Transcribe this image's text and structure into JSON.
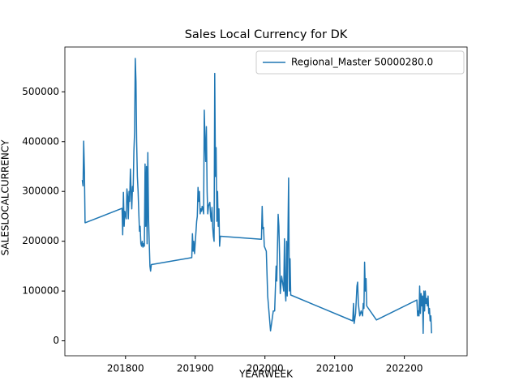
{
  "chart_data": {
    "type": "line",
    "title": "Sales Local Currency for DK",
    "x_label": "YEARWEEK",
    "y_label": "SALESLOCALCURRENCY",
    "x": [
      201738,
      201739,
      201740,
      201741,
      201742,
      201795,
      201796,
      201797,
      201798,
      201799,
      201801,
      201802,
      201803,
      201804,
      201805,
      201806,
      201807,
      201808,
      201809,
      201810,
      201811,
      201812,
      201813,
      201814,
      201815,
      201816,
      201817,
      201818,
      201819,
      201820,
      201821,
      201822,
      201823,
      201824,
      201825,
      201826,
      201827,
      201828,
      201829,
      201830,
      201831,
      201832,
      201833,
      201834,
      201835,
      201836,
      201837,
      201895,
      201896,
      201897,
      201898,
      201899,
      201902,
      201903,
      201904,
      201905,
      201906,
      201907,
      201908,
      201909,
      201910,
      201911,
      201912,
      201913,
      201914,
      201915,
      201916,
      201917,
      201918,
      201919,
      201920,
      201921,
      201922,
      201923,
      201924,
      201925,
      201926,
      201927,
      201928,
      201929,
      201930,
      201931,
      201932,
      201933,
      201934,
      201935,
      201936,
      201995,
      201996,
      201997,
      201998,
      201999,
      202002,
      202004,
      202008,
      202012,
      202014,
      202016,
      202017,
      202019,
      202020,
      202021,
      202022,
      202024,
      202026,
      202027,
      202028,
      202029,
      202030,
      202031,
      202032,
      202034,
      202035,
      202036,
      202037,
      202126,
      202127,
      202128,
      202130,
      202132,
      202133,
      202134,
      202136,
      202138,
      202140,
      202141,
      202142,
      202143,
      202144,
      202145,
      202146,
      202160,
      202218,
      202219,
      202220,
      202221,
      202222,
      202223,
      202224,
      202225,
      202226,
      202227,
      202228,
      202229,
      202230,
      202231,
      202232,
      202233,
      202234,
      202235,
      202236,
      202237,
      202238,
      202239
    ],
    "series": [
      {
        "name": "Regional_Master 50000280.0",
        "color": "#1f77b4",
        "values": [
          323000,
          311000,
          401000,
          340000,
          237000,
          266000,
          213000,
          298000,
          230000,
          260000,
          245000,
          305000,
          290000,
          245000,
          300000,
          280000,
          345000,
          300000,
          265000,
          310000,
          300000,
          380000,
          420000,
          567000,
          520000,
          400000,
          330000,
          300000,
          260000,
          220000,
          230000,
          195000,
          190000,
          200000,
          188000,
          195000,
          190000,
          355000,
          230000,
          350000,
          195000,
          378000,
          245000,
          200000,
          150000,
          140000,
          153000,
          167000,
          215000,
          180000,
          200000,
          175000,
          240000,
          250000,
          308000,
          280000,
          300000,
          255000,
          265000,
          260000,
          270000,
          265000,
          255000,
          463000,
          400000,
          360000,
          430000,
          300000,
          255000,
          270000,
          275000,
          278000,
          250000,
          240000,
          268000,
          230000,
          210000,
          200000,
          537000,
          330000,
          388000,
          240000,
          300000,
          230000,
          265000,
          190000,
          210000,
          204000,
          270000,
          225000,
          228000,
          190000,
          180000,
          90000,
          20000,
          60000,
          60000,
          150000,
          120000,
          254000,
          230000,
          170000,
          95000,
          130000,
          110000,
          100000,
          205000,
          100000,
          80000,
          200000,
          90000,
          327000,
          100000,
          165000,
          92000,
          40000,
          75000,
          35000,
          55000,
          110000,
          118000,
          75000,
          50000,
          60000,
          50000,
          75000,
          65000,
          158000,
          100000,
          125000,
          70000,
          42000,
          82000,
          50000,
          60000,
          50000,
          110000,
          55000,
          95000,
          70000,
          90000,
          15000,
          100000,
          60000,
          100000,
          75000,
          85000,
          70000,
          90000,
          55000,
          65000,
          40000,
          50000,
          15000
        ]
      }
    ],
    "xlim": [
      201713,
      202290
    ],
    "ylim": [
      -30000,
      590000
    ],
    "xticks": [
      201800,
      201900,
      202000,
      202100,
      202200
    ],
    "yticks": [
      0,
      100000,
      200000,
      300000,
      400000,
      500000
    ],
    "legend": "upper right"
  }
}
